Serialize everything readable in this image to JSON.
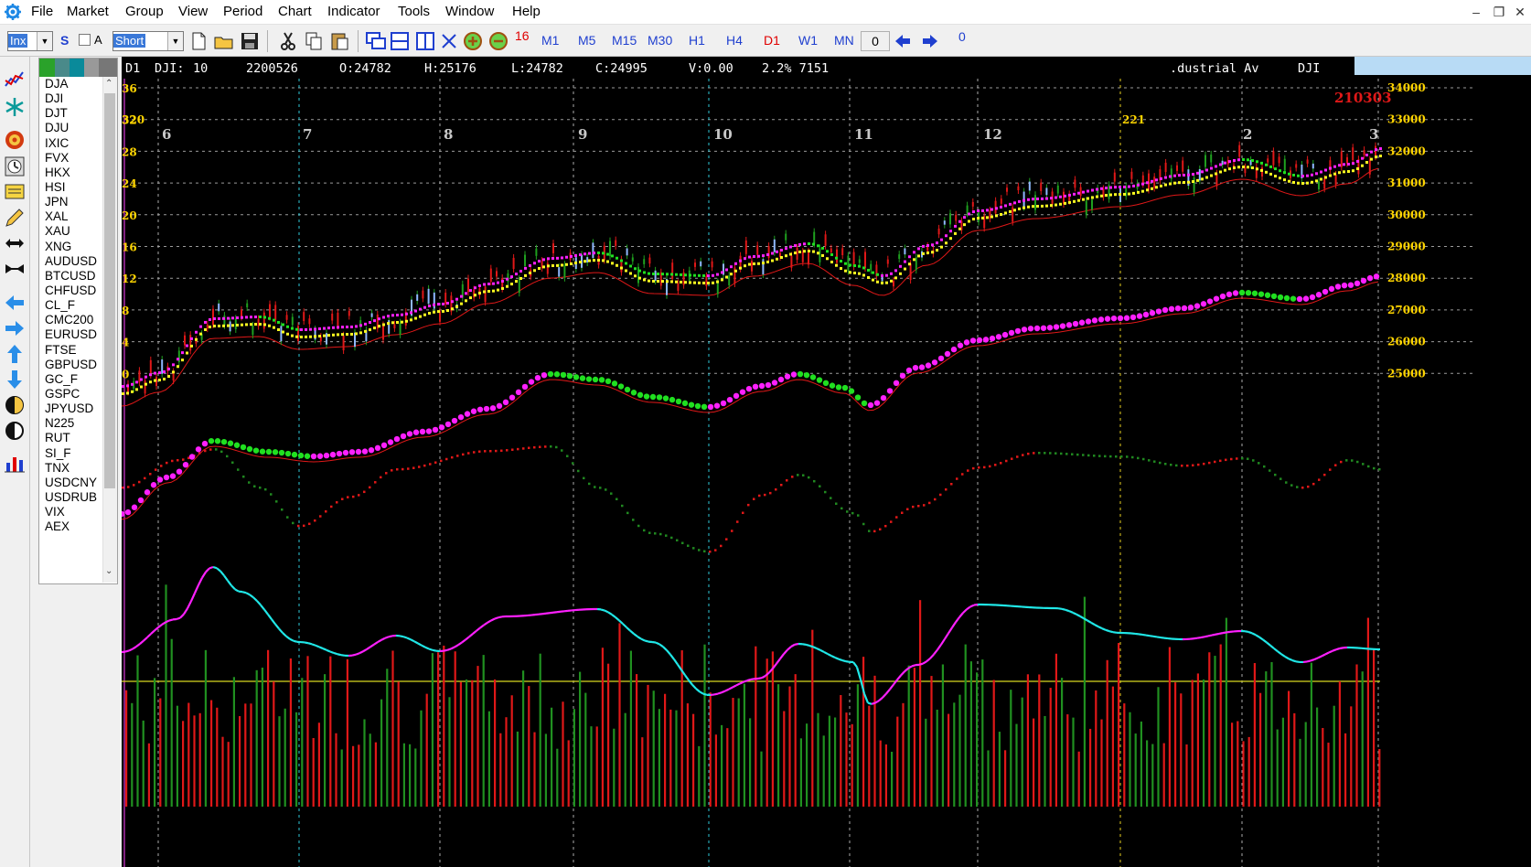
{
  "menu": [
    "File",
    "Market",
    "Group",
    "View",
    "Period",
    "Chart",
    "Indicator",
    "Tools",
    "Window",
    "Help"
  ],
  "toolbar": {
    "symbol_combo": "Inx",
    "s_label": "S",
    "a_label": "A",
    "mode_combo": "Short",
    "zoom_badge": "16",
    "timeframes": [
      {
        "label": "M1",
        "color": "#1f3fcf"
      },
      {
        "label": "M5",
        "color": "#1f3fcf"
      },
      {
        "label": "M15",
        "color": "#1f3fcf"
      },
      {
        "label": "M30",
        "color": "#1f3fcf"
      },
      {
        "label": "H1",
        "color": "#1f3fcf"
      },
      {
        "label": "H4",
        "color": "#1f3fcf"
      },
      {
        "label": "D1",
        "color": "#e00000"
      },
      {
        "label": "W1",
        "color": "#1f3fcf"
      },
      {
        "label": "MN",
        "color": "#1f3fcf"
      }
    ],
    "shift_field": "0",
    "offset_label": "0"
  },
  "symbols": [
    "DJA",
    "DJI",
    "DJT",
    "DJU",
    "IXIC",
    "FVX",
    "HKX",
    "HSI",
    "JPN",
    "XAL",
    "XAU",
    "XNG",
    "AUDUSD",
    "BTCUSD",
    "CHFUSD",
    "CL_F",
    "CMC200",
    "EURUSD",
    "FTSE",
    "GBPUSD",
    "GC_F",
    "GSPC",
    "JPYUSD",
    "N225",
    "RUT",
    "SI_F",
    "TNX",
    "USDCNY",
    "USDRUB",
    "VIX",
    "AEX"
  ],
  "infobar": {
    "period": "D1",
    "symbol": "DJI:",
    "count": "10",
    "date": "2200526",
    "open": "O:24782",
    "high": "H:25176",
    "low": "L:24782",
    "close": "C:24995",
    "volume": "V:0.00",
    "change": "2.2% 7151",
    "name": ".dustrial Av",
    "code": "DJI"
  },
  "chart": {
    "left_axis": [
      "36",
      "32",
      "28",
      "24",
      "20",
      "16",
      "12",
      "8",
      "4",
      "0"
    ],
    "right_axis": [
      "34000",
      "33000",
      "32000",
      "31000",
      "30000",
      "29000",
      "28000",
      "27000",
      "26000",
      "25000"
    ],
    "months": [
      "6",
      "7",
      "8",
      "9",
      "10",
      "11",
      "12",
      "2",
      "3"
    ],
    "top_left_value": "320",
    "mid_marker": "221",
    "top_right_date": "210303",
    "colors": {
      "up": "#ff2a2a",
      "down": "#8fb8ff",
      "green": "#20e020",
      "magenta": "#ff20ff",
      "yellow": "#ffff20",
      "cyan": "#20e8e8",
      "axis": "#ffd500"
    }
  }
}
